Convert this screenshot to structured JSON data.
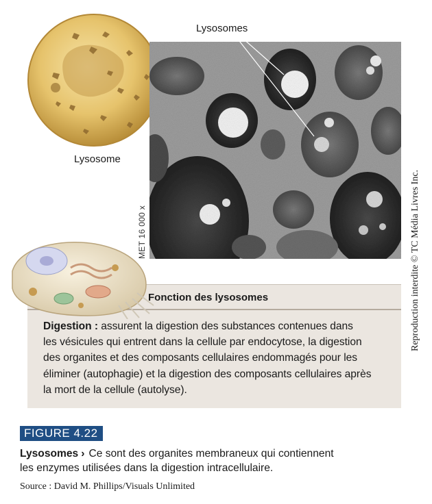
{
  "illustration": {
    "lysosome_label": "Lysosome",
    "lysosomes_label": "Lysosomes"
  },
  "micrograph": {
    "magnification": "MET 16 000 x"
  },
  "copyright": "Reproduction interdite © TC Média Livres Inc.",
  "function_box": {
    "title": "Fonction des lysosomes",
    "term": "Digestion :",
    "lines": [
      " assurent la digestion des substances contenues dans",
      "les vésicules qui entrent dans la cellule par endocytose, la digestion",
      "des organites et des composants cellulaires endommagés pour les",
      "éliminer (autophagie) et la digestion des composants cellulaires après",
      "la mort de la cellule (autolyse)."
    ]
  },
  "figure": {
    "tag": "FIGURE 4.22",
    "caption_title": "Lysosomes",
    "chevron": "›",
    "caption_lines": [
      "Ce sont des organites membraneux qui contiennent",
      "les enzymes utilisées dans la digestion intracellulaire."
    ],
    "source": "Source : David M. Phillips/Visuals Unlimited"
  },
  "colors": {
    "figure_tag_bg": "#1f4e84",
    "box_bg": "#ebe6e0",
    "sphere": "#e3bf66"
  }
}
